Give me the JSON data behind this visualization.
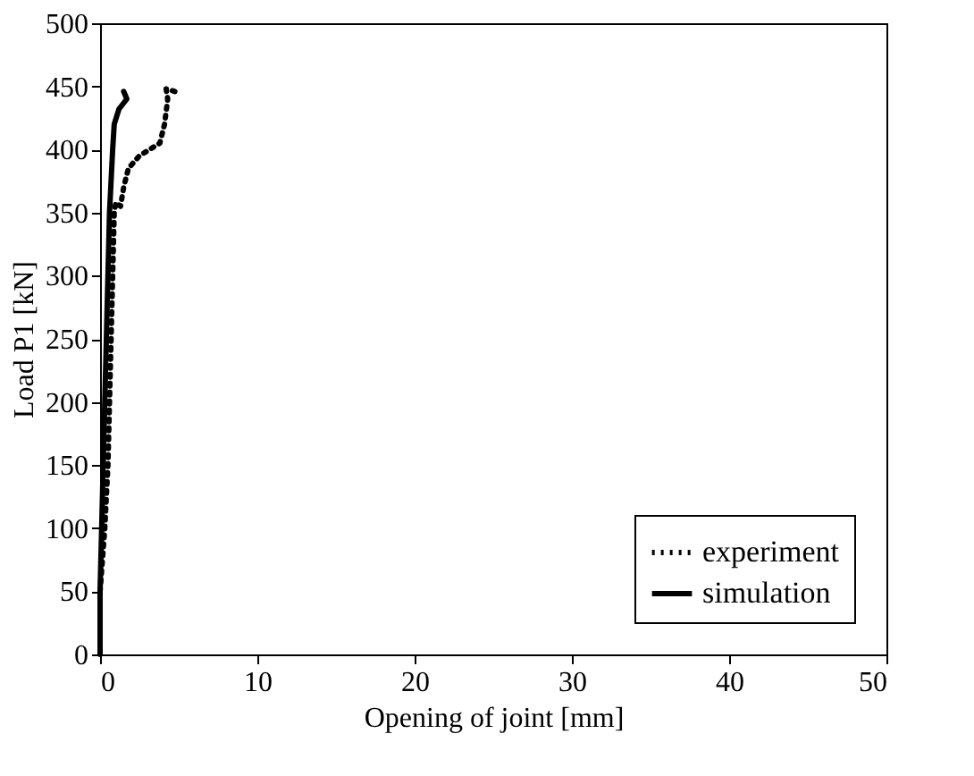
{
  "chart_data": {
    "type": "line",
    "xlabel": "Opening of joint [mm]",
    "ylabel": "Load P1 [kN]",
    "xlim": [
      0,
      50
    ],
    "xticks": [
      0,
      10,
      20,
      30,
      40,
      50
    ],
    "ylim": [
      0,
      500
    ],
    "yticks": [
      0,
      50,
      100,
      150,
      200,
      250,
      300,
      350,
      400,
      450,
      500
    ],
    "grid": false,
    "legend": "bottom right",
    "marker": "none",
    "series": [
      {
        "name": "experiment",
        "color": "#000000",
        "line_style": "dotted",
        "x": [
          0,
          0.3,
          0.5,
          0.6,
          0.7,
          0.8,
          0.9,
          1.0,
          1.3,
          1.5,
          1.8,
          2.5,
          3.8,
          4.1,
          4.3,
          4.2,
          5.0
        ],
        "values": [
          50,
          100,
          150,
          200,
          250,
          300,
          350,
          358,
          355,
          370,
          385,
          395,
          405,
          420,
          440,
          448,
          445
        ]
      },
      {
        "name": "simulation",
        "color": "#000000",
        "line_style": "solid",
        "x": [
          0,
          0,
          0.2,
          0.4,
          0.6,
          0.8,
          0.9,
          1.2,
          1.7,
          1.5
        ],
        "values": [
          0,
          50,
          150,
          250,
          350,
          400,
          420,
          432,
          440,
          446
        ]
      }
    ]
  }
}
